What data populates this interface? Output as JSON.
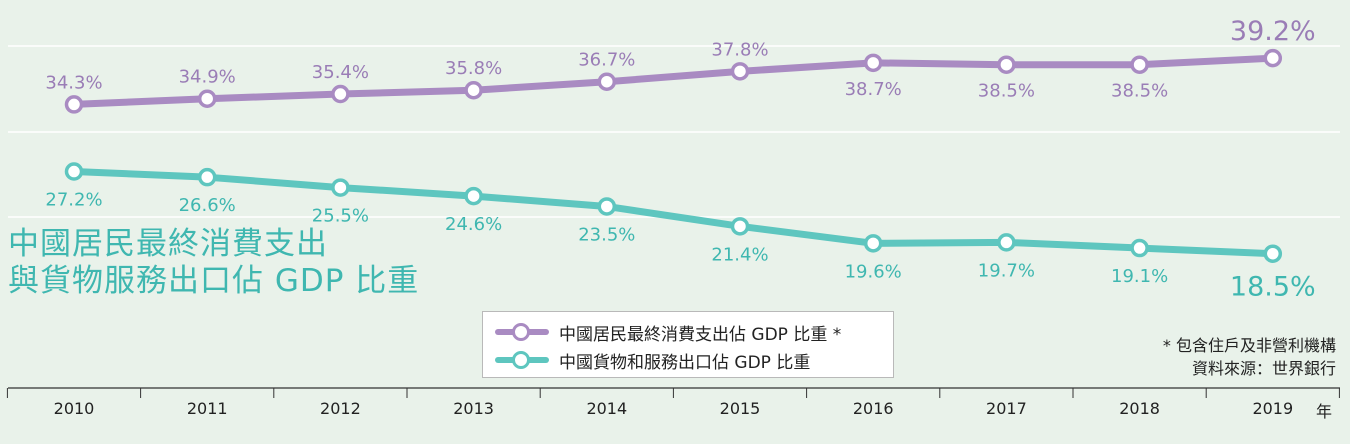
{
  "chart_data": {
    "type": "line",
    "title": "中國居民最終消費支出\n與貨物服務出口佔 GDP 比重",
    "title_lines": [
      "中國居民最終消費支出",
      "與貨物服務出口佔 GDP 比重"
    ],
    "x": [
      "2010",
      "2011",
      "2012",
      "2013",
      "2014",
      "2015",
      "2016",
      "2017",
      "2018",
      "2019"
    ],
    "xunit": "年",
    "ylim": [
      0,
      50
    ],
    "grid": true,
    "legend_position": "bottom-center",
    "series": [
      {
        "name": "中國居民最終消費支出佔 GDP 比重 *",
        "values": [
          34.3,
          34.9,
          35.4,
          35.8,
          36.7,
          37.8,
          38.7,
          38.5,
          38.5,
          39.2
        ],
        "labels": [
          "34.3%",
          "34.9%",
          "35.4%",
          "35.8%",
          "36.7%",
          "37.8%",
          "38.7%",
          "38.5%",
          "38.5%",
          "39.2%"
        ],
        "color": "#a98bc2"
      },
      {
        "name": "中國貨物和服務出口佔 GDP 比重",
        "values": [
          27.2,
          26.6,
          25.5,
          24.6,
          23.5,
          21.4,
          19.6,
          19.7,
          19.1,
          18.5
        ],
        "labels": [
          "27.2%",
          "26.6%",
          "25.5%",
          "24.6%",
          "23.5%",
          "21.4%",
          "19.6%",
          "19.7%",
          "19.1%",
          "18.5%"
        ],
        "color": "#5ec6bf"
      }
    ]
  },
  "notes": {
    "footnote": "* 包含住戶及非營利機構",
    "source": "資料來源：世界銀行"
  },
  "colors": {
    "background": "#e9f2ea",
    "consumption": "#a98bc2",
    "consumption_label": "#9a7db6",
    "exports": "#5ec6bf",
    "exports_label": "#3fb7b0",
    "title": "#3fb7b0"
  }
}
